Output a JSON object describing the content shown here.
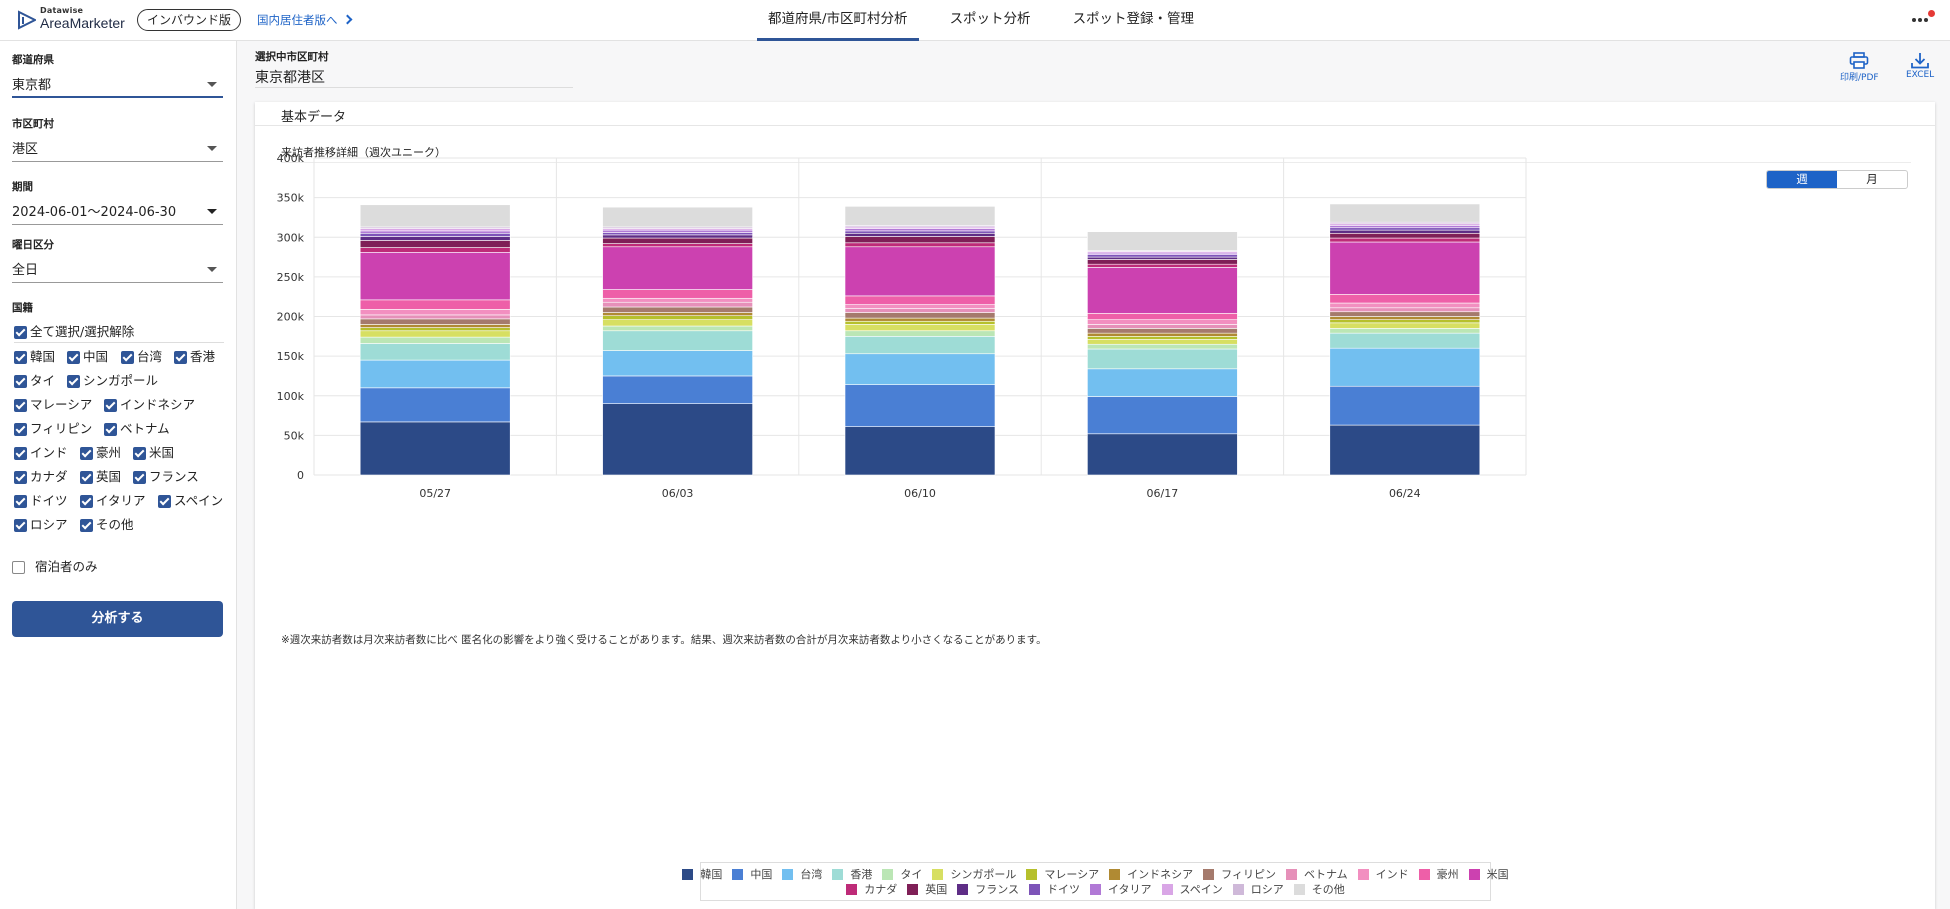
{
  "header": {
    "logo_small": "Datawise",
    "logo_big": "AreaMarketer",
    "edition": "インバウンド版",
    "domestic_link": "国内居住者版へ",
    "tabs": [
      "都道府県/市区町村分析",
      "スポット分析",
      "スポット登録・管理"
    ],
    "active_tab": 0
  },
  "sidebar": {
    "prefecture_label": "都道府県",
    "prefecture_value": "東京都",
    "city_label": "市区町村",
    "city_value": "港区",
    "period_label": "期間",
    "period_value": "2024-06-01〜2024-06-30",
    "daytype_label": "曜日区分",
    "daytype_value": "全日",
    "nationality_label": "国籍",
    "select_all": "全て選択/選択解除",
    "nationalities": [
      "韓国",
      "中国",
      "台湾",
      "香港",
      "タイ",
      "シンガポール",
      "マレーシア",
      "インドネシア",
      "フィリピン",
      "ベトナム",
      "インド",
      "豪州",
      "米国",
      "カナダ",
      "英国",
      "フランス",
      "ドイツ",
      "イタリア",
      "スペイン",
      "ロシア",
      "その他"
    ],
    "lodging_only": "宿泊者のみ",
    "analyze_button": "分析する"
  },
  "main": {
    "selected_label": "選択中市区町村",
    "selected_value": "東京都港区",
    "print_label": "印刷/PDF",
    "excel_label": "EXCEL",
    "card_title": "基本データ",
    "section_title": "来訪者推移詳細（週次ユニーク）",
    "toggle": [
      "週",
      "月"
    ],
    "toggle_active": 0,
    "footnote": "※週次来訪者数は月次来訪者数に比べ 匿名化の影響をより強く受けることがあります。結果、週次来訪者数の合計が月次来訪者数より小さくなることがあります。"
  },
  "chart_data": {
    "type": "bar",
    "stacked": true,
    "categories": [
      "05/27",
      "06/03",
      "06/10",
      "06/17",
      "06/24"
    ],
    "ylim": [
      0,
      400000
    ],
    "y_ticks": [
      "0",
      "50k",
      "100k",
      "150k",
      "200k",
      "250k",
      "300k",
      "350k",
      "400k"
    ],
    "grid": true,
    "legend_position": "bottom",
    "series": [
      {
        "name": "韓国",
        "color": "#2c4a87",
        "values": [
          67000,
          90000,
          61000,
          52000,
          63000
        ]
      },
      {
        "name": "中国",
        "color": "#4a7fd4",
        "values": [
          43000,
          35000,
          53000,
          47000,
          49000
        ]
      },
      {
        "name": "台湾",
        "color": "#72bff0",
        "values": [
          35000,
          32000,
          39000,
          35000,
          48000
        ]
      },
      {
        "name": "香港",
        "color": "#9edcd6",
        "values": [
          21000,
          25000,
          22000,
          25000,
          19000
        ]
      },
      {
        "name": "タイ",
        "color": "#bbe6b5",
        "values": [
          8000,
          6000,
          7000,
          6000,
          6000
        ]
      },
      {
        "name": "シンガポール",
        "color": "#d7df62",
        "values": [
          8000,
          8000,
          8000,
          6000,
          7000
        ]
      },
      {
        "name": "マレーシア",
        "color": "#b6c02c",
        "values": [
          4000,
          5000,
          4000,
          4000,
          4000
        ]
      },
      {
        "name": "インドネシア",
        "color": "#b08a33",
        "values": [
          4000,
          4000,
          4000,
          4000,
          4000
        ]
      },
      {
        "name": "フィリピン",
        "color": "#a57a6c",
        "values": [
          7000,
          7000,
          7000,
          6000,
          6000
        ]
      },
      {
        "name": "ベトナム",
        "color": "#e690b9",
        "values": [
          5000,
          6000,
          5000,
          5000,
          5000
        ]
      },
      {
        "name": "インド",
        "color": "#f28fc0",
        "values": [
          7000,
          5000,
          5000,
          6000,
          6000
        ]
      },
      {
        "name": "豪州",
        "color": "#ee5fa8",
        "values": [
          12000,
          11000,
          11000,
          8000,
          11000
        ]
      },
      {
        "name": "米国",
        "color": "#cc41b0",
        "values": [
          60000,
          54000,
          62000,
          58000,
          66000
        ]
      },
      {
        "name": "カナダ",
        "color": "#be2b78",
        "values": [
          6000,
          4000,
          5000,
          4000,
          5000
        ]
      },
      {
        "name": "英国",
        "color": "#7f1f57",
        "values": [
          9000,
          7000,
          8000,
          6000,
          6000
        ]
      },
      {
        "name": "フランス",
        "color": "#5e2d86",
        "values": [
          5000,
          4000,
          4000,
          3000,
          4000
        ]
      },
      {
        "name": "ドイツ",
        "color": "#7d54b8",
        "values": [
          4000,
          3000,
          3000,
          3000,
          3000
        ]
      },
      {
        "name": "イタリア",
        "color": "#b179d6",
        "values": [
          3000,
          3000,
          3000,
          2000,
          3000
        ]
      },
      {
        "name": "スペイン",
        "color": "#d9a6e6",
        "values": [
          3000,
          2000,
          2000,
          2000,
          2000
        ]
      },
      {
        "name": "ロシア",
        "color": "#cfb9d9",
        "values": [
          2000,
          2000,
          2000,
          1000,
          2000
        ]
      },
      {
        "name": "その他",
        "color": "#dcdcdc",
        "values": [
          28000,
          25000,
          24000,
          24000,
          23000
        ]
      }
    ]
  }
}
